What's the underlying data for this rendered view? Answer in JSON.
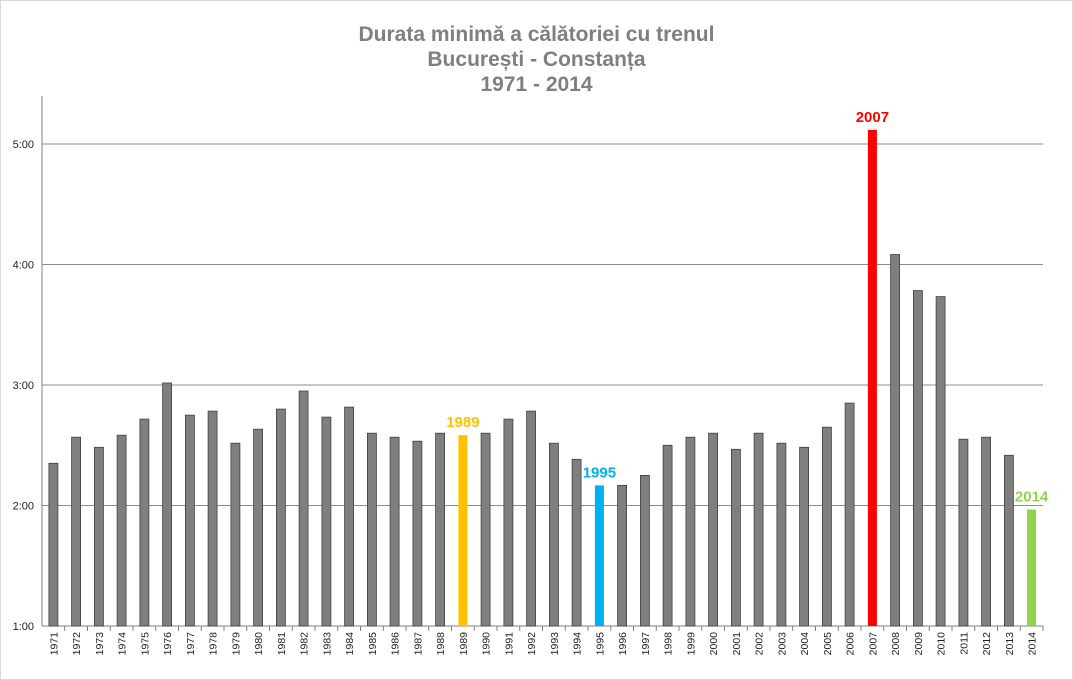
{
  "chart_data": {
    "type": "bar",
    "title": [
      "Durata minimă a călătoriei cu trenul",
      "București - Constanța",
      "1971 - 2014"
    ],
    "xlabel": "",
    "ylabel": "",
    "ylim_minutes": [
      60,
      330
    ],
    "yticks": [
      {
        "label": "1:00",
        "minutes": 60
      },
      {
        "label": "2:00",
        "minutes": 120
      },
      {
        "label": "3:00",
        "minutes": 180
      },
      {
        "label": "4:00",
        "minutes": 240
      },
      {
        "label": "5:00",
        "minutes": 300
      }
    ],
    "grid": true,
    "default_color": "#7f7f7f",
    "categories": [
      "1971",
      "1972",
      "1973",
      "1974",
      "1975",
      "1976",
      "1977",
      "1978",
      "1979",
      "1980",
      "1981",
      "1982",
      "1983",
      "1984",
      "1985",
      "1986",
      "1987",
      "1988",
      "1989",
      "1990",
      "1991",
      "1992",
      "1993",
      "1994",
      "1995",
      "1996",
      "1997",
      "1998",
      "1999",
      "2000",
      "2001",
      "2002",
      "2003",
      "2004",
      "2005",
      "2006",
      "2007",
      "2008",
      "2009",
      "2010",
      "2011",
      "2012",
      "2013",
      "2014"
    ],
    "values_minutes": [
      141,
      154,
      149,
      155,
      163,
      181,
      165,
      167,
      151,
      158,
      168,
      177,
      164,
      169,
      156,
      154,
      152,
      156,
      155,
      156,
      163,
      167,
      151,
      143,
      130,
      130,
      135,
      150,
      154,
      156,
      148,
      156,
      151,
      149,
      159,
      171,
      307,
      245,
      227,
      224,
      153,
      154,
      145,
      118
    ],
    "highlights": [
      {
        "year": "1989",
        "color": "#ffc000",
        "label": "1989"
      },
      {
        "year": "1995",
        "color": "#00b0f0",
        "label": "1995"
      },
      {
        "year": "2007",
        "color": "#ff0000",
        "label": "2007"
      },
      {
        "year": "2014",
        "color": "#92d050",
        "label": "2014"
      }
    ]
  }
}
